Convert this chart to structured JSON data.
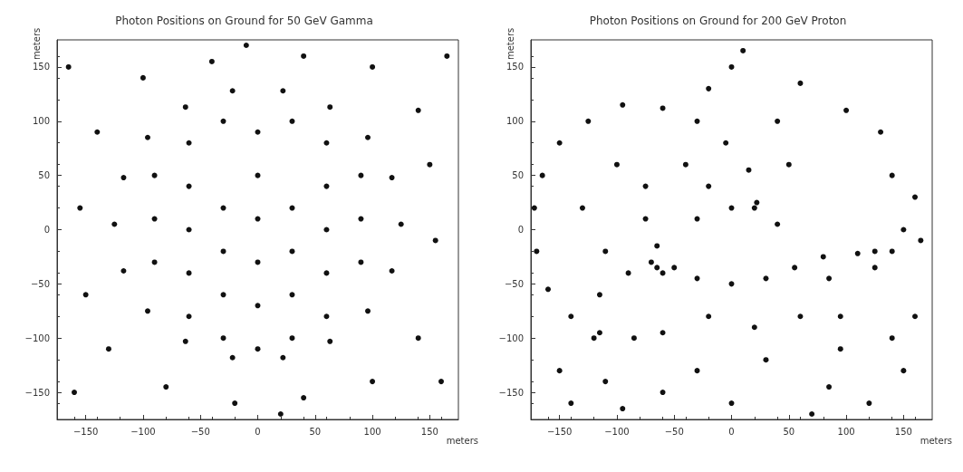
{
  "chart_data": [
    {
      "type": "scatter",
      "title": "Photon Positions on Ground for 50 GeV Gamma",
      "xlabel": "meters",
      "ylabel": "meters",
      "xlim": [
        -175,
        175
      ],
      "ylim": [
        -175,
        175
      ],
      "xticks": [
        -150,
        -100,
        -50,
        0,
        50,
        100,
        150
      ],
      "yticks": [
        -150,
        -100,
        -50,
        0,
        50,
        100,
        150
      ],
      "grid": false,
      "marker": "circle",
      "series": [
        {
          "color": "#111111",
          "x": [
            125,
            117,
            96,
            63,
            22,
            -22,
            -63,
            -96,
            -117,
            -125,
            -117,
            -96,
            -63,
            -22,
            22,
            63,
            96,
            117,
            -90,
            -90,
            -90,
            -60,
            -60,
            -60,
            -60,
            -60,
            -30,
            -30,
            -30,
            -30,
            -30,
            0,
            0,
            0,
            0,
            0,
            0,
            30,
            30,
            30,
            30,
            30,
            60,
            60,
            60,
            60,
            60,
            90,
            90,
            90,
            150,
            140,
            100,
            40,
            -40,
            -100,
            -140,
            -155,
            -150,
            -130,
            -80,
            -20,
            40,
            100,
            140,
            155,
            -165,
            165,
            -160,
            160,
            -10,
            20
          ],
          "values": [
            5,
            48,
            85,
            113,
            128,
            128,
            113,
            85,
            48,
            5,
            -38,
            -75,
            -103,
            -118,
            -118,
            -103,
            -75,
            -38,
            -30,
            10,
            50,
            -80,
            -40,
            0,
            40,
            80,
            -100,
            -60,
            -20,
            20,
            100,
            -110,
            -70,
            -30,
            10,
            50,
            90,
            -100,
            -60,
            -20,
            20,
            100,
            -80,
            -40,
            0,
            40,
            80,
            -30,
            10,
            50,
            60,
            110,
            150,
            160,
            155,
            140,
            90,
            20,
            -60,
            -110,
            -145,
            -160,
            -155,
            -140,
            -100,
            -10,
            150,
            160,
            -150,
            -140,
            170,
            -170
          ]
        }
      ]
    },
    {
      "type": "scatter",
      "title": "Photon Positions on Ground for 200 GeV Proton",
      "xlabel": "meters",
      "ylabel": "meters",
      "xlim": [
        -175,
        175
      ],
      "ylim": [
        -175,
        175
      ],
      "xticks": [
        -150,
        -100,
        -50,
        0,
        50,
        100,
        150
      ],
      "yticks": [
        -150,
        -100,
        -50,
        0,
        50,
        100,
        150
      ],
      "grid": false,
      "marker": "circle",
      "series": [
        {
          "color": "#111111",
          "x": [
            -165,
            -150,
            -125,
            -95,
            -60,
            -30,
            -5,
            15,
            22,
            -172,
            -170,
            -160,
            -140,
            -115,
            -85,
            -60,
            -75,
            -75,
            -65,
            -50,
            -30,
            0,
            30,
            55,
            80,
            40,
            20,
            0,
            -30,
            -115,
            -120,
            -110,
            -95,
            70,
            85,
            95,
            95,
            85,
            125,
            125,
            110,
            140,
            150,
            160,
            140,
            165,
            10,
            0,
            60,
            -20,
            100,
            130,
            40,
            -150,
            -30,
            30,
            150,
            120,
            -60,
            0,
            -140,
            160,
            140,
            -130,
            -110,
            -100,
            -40,
            -20,
            50,
            60,
            -20,
            20,
            -90,
            -65,
            -60,
            -70
          ],
          "values": [
            50,
            80,
            100,
            115,
            112,
            100,
            80,
            55,
            25,
            20,
            -20,
            -55,
            -80,
            -95,
            -100,
            -95,
            40,
            10,
            -15,
            -35,
            -45,
            -50,
            -45,
            -35,
            -25,
            5,
            20,
            20,
            10,
            -60,
            -100,
            -140,
            -165,
            -170,
            -145,
            -110,
            -80,
            -45,
            -20,
            -35,
            -22,
            -20,
            0,
            30,
            50,
            -10,
            165,
            150,
            135,
            130,
            110,
            90,
            100,
            -130,
            -130,
            -120,
            -130,
            -160,
            -150,
            -160,
            -160,
            -80,
            -100,
            20,
            -20,
            60,
            60,
            40,
            60,
            -80,
            -80,
            -90,
            -40,
            -35,
            -40,
            -30
          ]
        }
      ]
    }
  ]
}
